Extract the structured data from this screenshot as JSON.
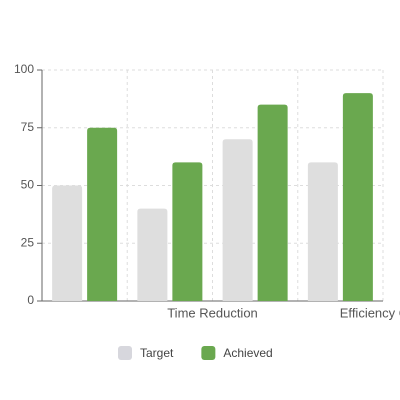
{
  "chart_data": {
    "type": "bar",
    "categories": [
      null,
      "Time Reduction",
      null,
      "Efficiency Gain"
    ],
    "series": [
      {
        "name": "Target",
        "color": "#dedede",
        "values": [
          50,
          40,
          70,
          60
        ]
      },
      {
        "name": "Achieved",
        "color": "#6aa84f",
        "values": [
          75,
          60,
          85,
          90
        ]
      }
    ],
    "ylim": [
      0,
      100
    ],
    "yticks": [
      0,
      25,
      50,
      75,
      100
    ],
    "grid": true
  }
}
